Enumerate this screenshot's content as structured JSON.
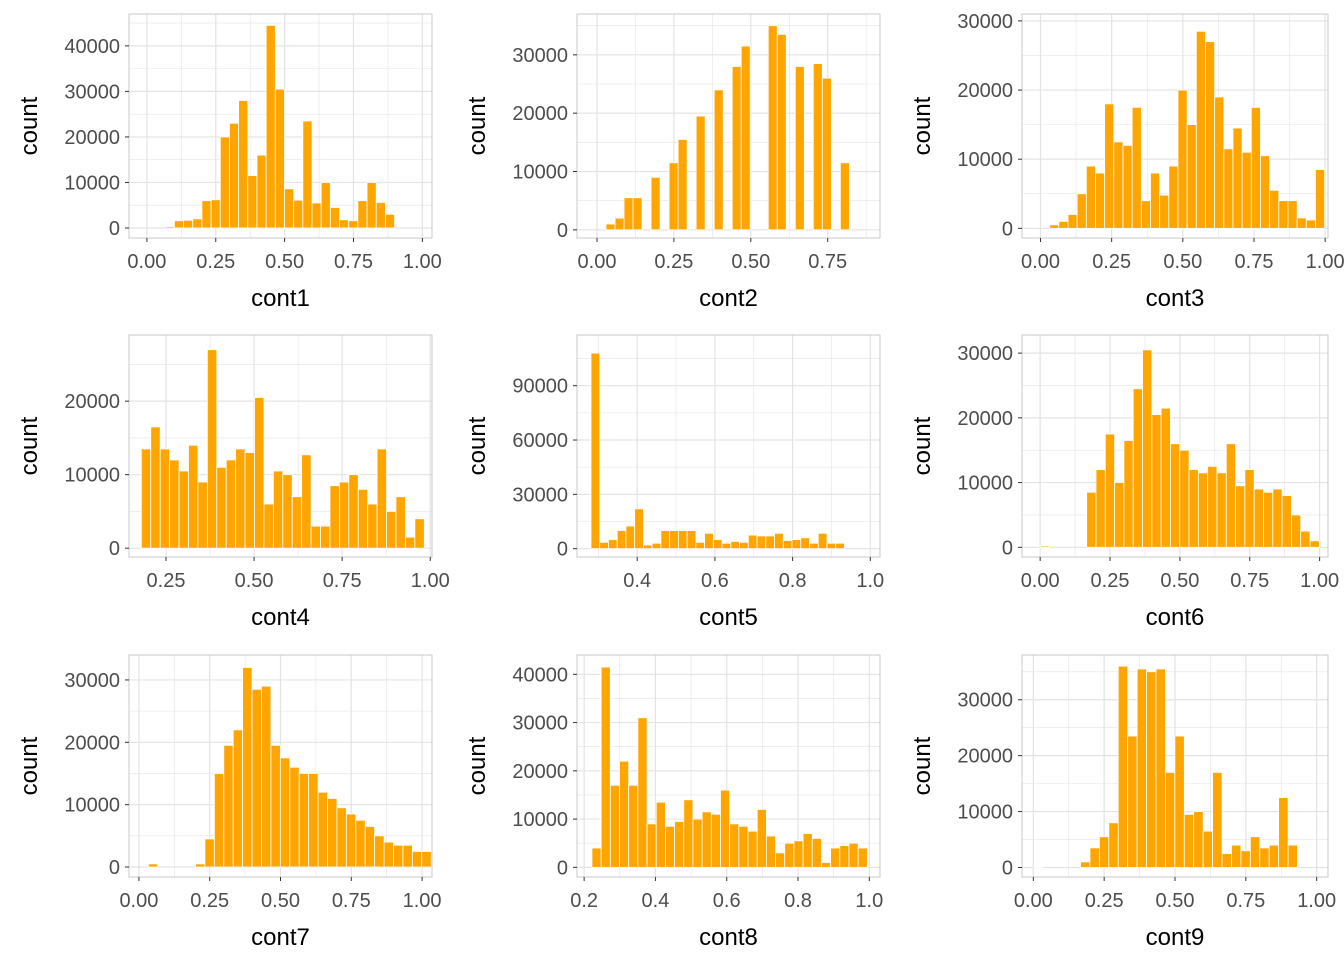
{
  "style": {
    "bar_color": "#FFA500",
    "bar_edge": "#FFFFFF",
    "grid_color": "#E3E3E3",
    "frame_color": "#C8C8C8"
  },
  "chart_data": [
    {
      "type": "bar",
      "name": "cont1-histogram",
      "xlabel": "cont1",
      "ylabel": "count",
      "xlim": [
        -0.065,
        1.035
      ],
      "ylim": [
        -2200,
        47000
      ],
      "xticks": [
        {
          "v": 0.0,
          "label": "0.00"
        },
        {
          "v": 0.25,
          "label": "0.25"
        },
        {
          "v": 0.5,
          "label": "0.50"
        },
        {
          "v": 0.75,
          "label": "0.75"
        },
        {
          "v": 1.0,
          "label": "1.00"
        }
      ],
      "yticks": [
        {
          "v": 0,
          "label": "0"
        },
        {
          "v": 10000,
          "label": "10000"
        },
        {
          "v": 20000,
          "label": "20000"
        },
        {
          "v": 30000,
          "label": "30000"
        },
        {
          "v": 40000,
          "label": "40000"
        }
      ],
      "bins": {
        "start": 0.0,
        "width": 0.0333,
        "values": [
          0,
          0,
          300,
          1600,
          1700,
          2000,
          6000,
          6200,
          20000,
          23000,
          28000,
          11500,
          16000,
          44500,
          30500,
          8600,
          6100,
          23500,
          5500,
          10000,
          4500,
          1800,
          1600,
          6000,
          10000,
          5600,
          3000
        ]
      }
    },
    {
      "type": "bar",
      "name": "cont2-histogram",
      "xlabel": "cont2",
      "ylabel": "count",
      "xlim": [
        -0.065,
        0.92
      ],
      "ylim": [
        -1400,
        37000
      ],
      "xticks": [
        {
          "v": 0.0,
          "label": "0.00"
        },
        {
          "v": 0.25,
          "label": "0.25"
        },
        {
          "v": 0.5,
          "label": "0.50"
        },
        {
          "v": 0.75,
          "label": "0.75"
        }
      ],
      "yticks": [
        {
          "v": 0,
          "label": "0"
        },
        {
          "v": 10000,
          "label": "10000"
        },
        {
          "v": 20000,
          "label": "20000"
        },
        {
          "v": 30000,
          "label": "30000"
        }
      ],
      "bins": {
        "start": 0.0,
        "width": 0.0293,
        "values": [
          0,
          1000,
          2000,
          5500,
          5500,
          0,
          9000,
          0,
          11500,
          15500,
          0,
          19500,
          0,
          24000,
          0,
          28000,
          31500,
          0,
          0,
          35000,
          33500,
          0,
          28000,
          0,
          28500,
          26000,
          0,
          11500
        ]
      }
    },
    {
      "type": "bar",
      "name": "cont3-histogram",
      "xlabel": "cont3",
      "ylabel": "count",
      "xlim": [
        -0.065,
        1.01
      ],
      "ylim": [
        -1400,
        31000
      ],
      "xticks": [
        {
          "v": 0.0,
          "label": "0.00"
        },
        {
          "v": 0.25,
          "label": "0.25"
        },
        {
          "v": 0.5,
          "label": "0.50"
        },
        {
          "v": 0.75,
          "label": "0.75"
        },
        {
          "v": 1.0,
          "label": "1.00"
        }
      ],
      "yticks": [
        {
          "v": 0,
          "label": "0"
        },
        {
          "v": 10000,
          "label": "10000"
        },
        {
          "v": 20000,
          "label": "20000"
        },
        {
          "v": 30000,
          "label": "30000"
        }
      ],
      "bins": {
        "start": 0.0,
        "width": 0.0322,
        "values": [
          0,
          500,
          1000,
          2000,
          5000,
          9000,
          8000,
          18000,
          12500,
          12000,
          17500,
          4000,
          8000,
          4800,
          9000,
          20000,
          15000,
          28500,
          27000,
          19000,
          11500,
          14500,
          11000,
          17500,
          10500,
          5500,
          4000,
          4000,
          1500,
          1200,
          8500
        ]
      }
    },
    {
      "type": "bar",
      "name": "cont4-histogram",
      "xlabel": "cont4",
      "ylabel": "count",
      "xlim": [
        0.145,
        1.005
      ],
      "ylim": [
        -1200,
        29000
      ],
      "xticks": [
        {
          "v": 0.25,
          "label": "0.25"
        },
        {
          "v": 0.5,
          "label": "0.50"
        },
        {
          "v": 0.75,
          "label": "0.75"
        },
        {
          "v": 1.0,
          "label": "1.00"
        }
      ],
      "yticks": [
        {
          "v": 0,
          "label": "0"
        },
        {
          "v": 10000,
          "label": "10000"
        },
        {
          "v": 20000,
          "label": "20000"
        }
      ],
      "bins": {
        "start": 0.18,
        "width": 0.02677,
        "values": [
          13500,
          16500,
          13500,
          12000,
          10500,
          14000,
          9000,
          27000,
          11000,
          12000,
          13500,
          13000,
          20500,
          6000,
          10500,
          10000,
          7000,
          12700,
          3000,
          3000,
          8500,
          9000,
          10000,
          8000,
          6000,
          13500,
          5000,
          7000,
          1500,
          4000
        ]
      }
    },
    {
      "type": "bar",
      "name": "cont5-histogram",
      "xlabel": "cont5",
      "ylabel": "count",
      "xlim": [
        0.245,
        1.025
      ],
      "ylim": [
        -4600,
        118000
      ],
      "xticks": [
        {
          "v": 0.4,
          "label": "0.4"
        },
        {
          "v": 0.6,
          "label": "0.6"
        },
        {
          "v": 0.8,
          "label": "0.8"
        },
        {
          "v": 1.0,
          "label": "1.0"
        }
      ],
      "yticks": [
        {
          "v": 0,
          "label": "0"
        },
        {
          "v": 30000,
          "label": "30000"
        },
        {
          "v": 60000,
          "label": "60000"
        },
        {
          "v": 90000,
          "label": "90000"
        }
      ],
      "bins": {
        "start": 0.281,
        "width": 0.0225,
        "values": [
          108000,
          3500,
          5000,
          10000,
          12500,
          22000,
          2000,
          3000,
          10000,
          10000,
          10000,
          10000,
          3500,
          8500,
          5000,
          3000,
          4000,
          3500,
          7500,
          7000,
          7000,
          8500,
          4500,
          5000,
          6000,
          3000,
          8500,
          3000,
          3000
        ]
      }
    },
    {
      "type": "bar",
      "name": "cont6-histogram",
      "xlabel": "cont6",
      "ylabel": "count",
      "xlim": [
        -0.065,
        1.03
      ],
      "ylim": [
        -1500,
        32800
      ],
      "xticks": [
        {
          "v": 0.0,
          "label": "0.00"
        },
        {
          "v": 0.25,
          "label": "0.25"
        },
        {
          "v": 0.5,
          "label": "0.50"
        },
        {
          "v": 0.75,
          "label": "0.75"
        },
        {
          "v": 1.0,
          "label": "1.00"
        }
      ],
      "yticks": [
        {
          "v": 0,
          "label": "0"
        },
        {
          "v": 10000,
          "label": "10000"
        },
        {
          "v": 20000,
          "label": "20000"
        },
        {
          "v": 30000,
          "label": "30000"
        }
      ],
      "bins": {
        "start": 0.0,
        "width": 0.0333,
        "values": [
          200,
          0,
          0,
          0,
          0,
          8500,
          12000,
          17500,
          10000,
          16500,
          24500,
          30500,
          20500,
          21500,
          16000,
          15000,
          12000,
          11500,
          12500,
          11500,
          16000,
          9500,
          12000,
          9000,
          8500,
          9000,
          8000,
          5000,
          2500,
          1000
        ]
      }
    },
    {
      "type": "bar",
      "name": "cont7-histogram",
      "xlabel": "cont7",
      "ylabel": "count",
      "xlim": [
        -0.035,
        1.035
      ],
      "ylim": [
        -1600,
        34000
      ],
      "xticks": [
        {
          "v": 0.0,
          "label": "0.00"
        },
        {
          "v": 0.25,
          "label": "0.25"
        },
        {
          "v": 0.5,
          "label": "0.50"
        },
        {
          "v": 0.75,
          "label": "0.75"
        },
        {
          "v": 1.0,
          "label": "1.00"
        }
      ],
      "yticks": [
        {
          "v": 0,
          "label": "0"
        },
        {
          "v": 10000,
          "label": "10000"
        },
        {
          "v": 20000,
          "label": "20000"
        },
        {
          "v": 30000,
          "label": "30000"
        }
      ],
      "bins": {
        "start": 0.0,
        "width": 0.0333,
        "values": [
          0,
          500,
          0,
          0,
          0,
          0,
          500,
          4500,
          15000,
          19500,
          22000,
          32000,
          28500,
          29000,
          19500,
          17500,
          16000,
          15000,
          15000,
          12000,
          11000,
          9500,
          8500,
          7500,
          6500,
          5000,
          4000,
          3500,
          3500,
          2500,
          2500
        ]
      }
    },
    {
      "type": "bar",
      "name": "cont8-histogram",
      "xlabel": "cont8",
      "ylabel": "count",
      "xlim": [
        0.18,
        1.03
      ],
      "ylim": [
        -2000,
        44000
      ],
      "xticks": [
        {
          "v": 0.2,
          "label": "0.2"
        },
        {
          "v": 0.4,
          "label": "0.4"
        },
        {
          "v": 0.6,
          "label": "0.6"
        },
        {
          "v": 0.8,
          "label": "0.8"
        },
        {
          "v": 1.0,
          "label": "1.0"
        }
      ],
      "yticks": [
        {
          "v": 0,
          "label": "0"
        },
        {
          "v": 10000,
          "label": "10000"
        },
        {
          "v": 20000,
          "label": "20000"
        },
        {
          "v": 30000,
          "label": "30000"
        },
        {
          "v": 40000,
          "label": "40000"
        }
      ],
      "bins": {
        "start": 0.222,
        "width": 0.02575,
        "values": [
          4000,
          41500,
          17000,
          22000,
          17000,
          31000,
          9000,
          13500,
          8500,
          9500,
          14000,
          10000,
          11500,
          11000,
          16000,
          9000,
          8500,
          7500,
          12000,
          6500,
          3000,
          5000,
          5500,
          7000,
          6000,
          1000,
          4000,
          4500,
          5000,
          4000
        ]
      }
    },
    {
      "type": "bar",
      "name": "cont9-histogram",
      "xlabel": "cont9",
      "ylabel": "count",
      "xlim": [
        -0.04,
        1.04
      ],
      "ylim": [
        -1700,
        38000
      ],
      "xticks": [
        {
          "v": 0.0,
          "label": "0.00"
        },
        {
          "v": 0.25,
          "label": "0.25"
        },
        {
          "v": 0.5,
          "label": "0.50"
        },
        {
          "v": 0.75,
          "label": "0.75"
        },
        {
          "v": 1.0,
          "label": "1.00"
        }
      ],
      "yticks": [
        {
          "v": 0,
          "label": "0"
        },
        {
          "v": 10000,
          "label": "10000"
        },
        {
          "v": 20000,
          "label": "20000"
        },
        {
          "v": 30000,
          "label": "30000"
        }
      ],
      "bins": {
        "start": 0.0,
        "width": 0.0333,
        "values": [
          100,
          0,
          0,
          0,
          0,
          1000,
          3500,
          5500,
          8000,
          36000,
          23500,
          35500,
          35000,
          35500,
          17000,
          23500,
          9500,
          10000,
          6500,
          17000,
          2500,
          4000,
          3000,
          5500,
          3500,
          4000,
          12500,
          4000
        ]
      }
    }
  ]
}
